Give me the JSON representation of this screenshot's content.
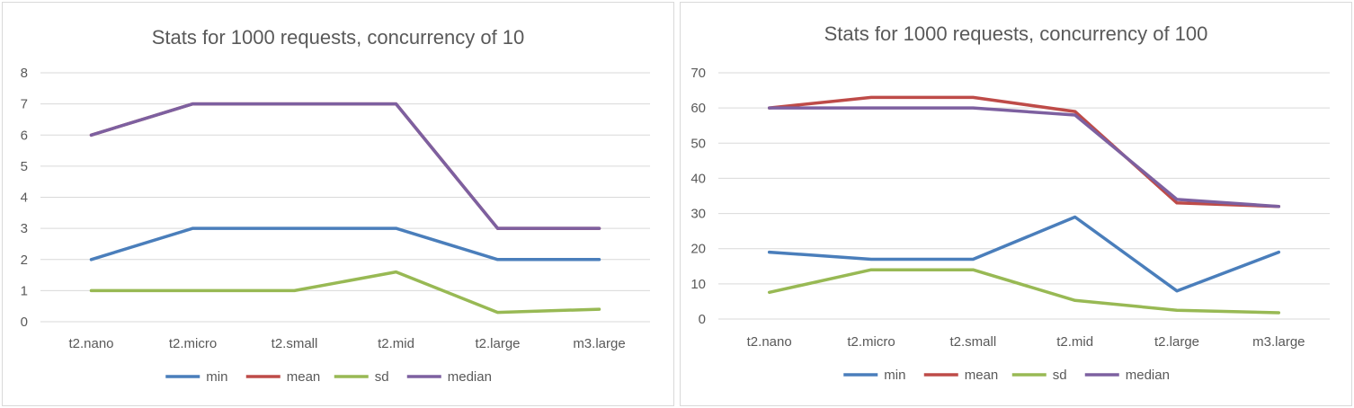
{
  "chart_data": [
    {
      "type": "line",
      "title": "Stats for 1000 requests, concurrency of 10",
      "categories": [
        "t2.nano",
        "t2.micro",
        "t2.small",
        "t2.mid",
        "t2.large",
        "m3.large"
      ],
      "ylim": [
        0,
        8
      ],
      "yticks": [
        "0",
        "1",
        "2",
        "3",
        "4",
        "5",
        "6",
        "7",
        "8"
      ],
      "grid": true,
      "legend": "bottom",
      "series": [
        {
          "name": "min",
          "color": "#4a7ebb",
          "values": [
            2,
            3,
            3,
            3,
            2,
            2
          ]
        },
        {
          "name": "mean",
          "color": "#be4b48",
          "values": [
            6,
            7,
            7,
            7,
            3,
            3
          ]
        },
        {
          "name": "sd",
          "color": "#98b954",
          "values": [
            1,
            1,
            1,
            1.6,
            0.3,
            0.4
          ]
        },
        {
          "name": "median",
          "color": "#7d60a0",
          "values": [
            6,
            7,
            7,
            7,
            3,
            3
          ]
        }
      ]
    },
    {
      "type": "line",
      "title": "Stats for 1000 requests, concurrency of 100",
      "categories": [
        "t2.nano",
        "t2.micro",
        "t2.small",
        "t2.mid",
        "t2.large",
        "m3.large"
      ],
      "ylim": [
        0,
        70
      ],
      "yticks": [
        "0",
        "10",
        "20",
        "30",
        "40",
        "50",
        "60",
        "70"
      ],
      "grid": true,
      "legend": "bottom",
      "series": [
        {
          "name": "min",
          "color": "#4a7ebb",
          "values": [
            19,
            17,
            17,
            29,
            8,
            19
          ]
        },
        {
          "name": "mean",
          "color": "#be4b48",
          "values": [
            60,
            63,
            63,
            59,
            33,
            32
          ]
        },
        {
          "name": "sd",
          "color": "#98b954",
          "values": [
            7.6,
            14,
            14,
            5.3,
            2.5,
            1.8
          ]
        },
        {
          "name": "median",
          "color": "#7d60a0",
          "values": [
            60,
            60,
            60,
            58,
            34,
            32
          ]
        }
      ]
    }
  ]
}
